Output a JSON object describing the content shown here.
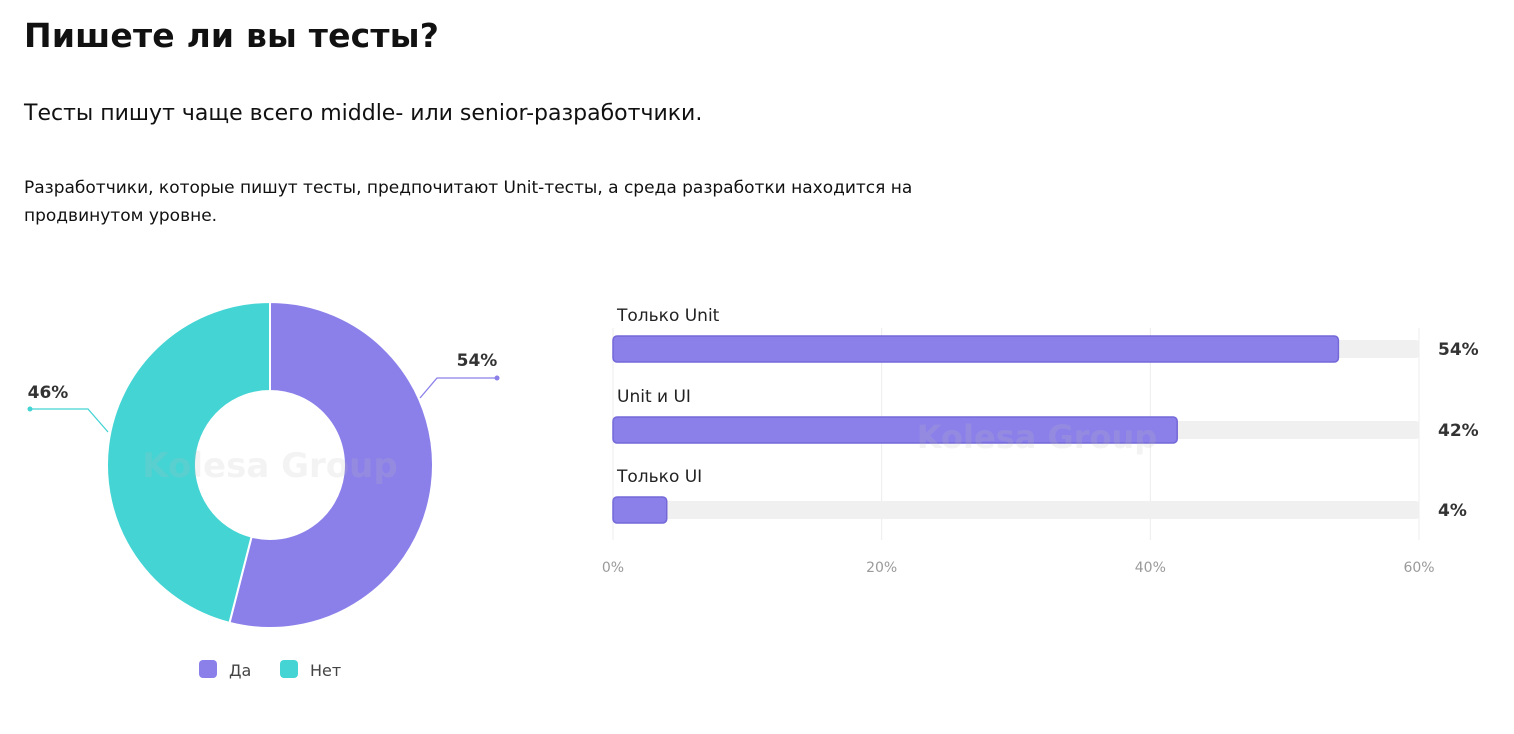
{
  "header": {
    "title": "Пишете ли вы тесты?",
    "subtitle": "Тесты пишут чаще всего middle- или senior-разработчики.",
    "description": "Разработчики, которые пишут тесты, предпочитают Unit-тесты, а среда разработки находится на продвинутом уровне."
  },
  "watermark": "Kolesa Group",
  "colors": {
    "purple": "#8b80ea",
    "teal": "#44d4d4",
    "track": "#f0f0f0"
  },
  "chart_data": [
    {
      "type": "pie",
      "donut": true,
      "categories": [
        "Да",
        "Нет"
      ],
      "values": [
        54,
        46
      ],
      "data_labels": [
        "54%",
        "46%"
      ],
      "colors": [
        "#8b80ea",
        "#44d4d4"
      ],
      "legend": {
        "placement": "bottom",
        "entries": [
          "Да",
          "Нет"
        ]
      }
    },
    {
      "type": "bar",
      "orientation": "horizontal",
      "categories": [
        "Только Unit",
        "Unit и UI",
        "Только UI"
      ],
      "values": [
        54,
        42,
        4
      ],
      "data_labels": [
        "54%",
        "42%",
        "4%"
      ],
      "xlim": [
        0,
        60
      ],
      "x_ticks": [
        "0%",
        "20%",
        "40%",
        "60%"
      ],
      "x_tick_values": [
        0,
        20,
        40,
        60
      ],
      "grid": true,
      "color": "#8b80ea"
    }
  ]
}
